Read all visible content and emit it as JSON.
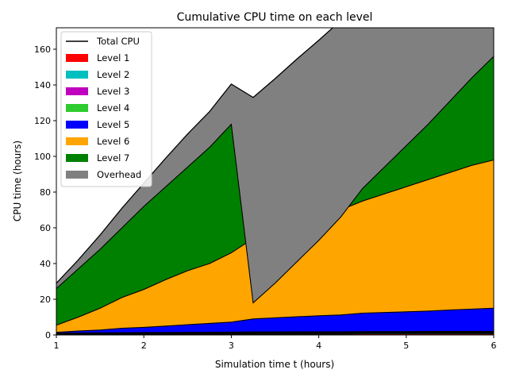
{
  "chart_data": {
    "type": "area",
    "title": "Cumulative CPU time on each level",
    "xlabel": "Simulation time t (hours)",
    "ylabel": "CPU time (hours)",
    "xlim": [
      1,
      6
    ],
    "ylim": [
      0,
      172
    ],
    "xticks": [
      "1",
      "2",
      "3",
      "4",
      "5",
      "6"
    ],
    "yticks": [
      "0",
      "20",
      "40",
      "60",
      "80",
      "100",
      "120",
      "140",
      "160"
    ],
    "legend_position": "top-left",
    "grid": false,
    "x": [
      1,
      1.25,
      1.5,
      1.75,
      2,
      2.25,
      2.5,
      2.75,
      3,
      3.25,
      3.5,
      3.75,
      4,
      4.25,
      4.5,
      4.75,
      5,
      5.25,
      5.5,
      5.75,
      6
    ],
    "cumulative_series": [
      {
        "name": "Level 1",
        "color": "#ff0000",
        "values": [
          0.3,
          0.3,
          0.4,
          0.4,
          0.4,
          0.4,
          0.5,
          0.5,
          0.5,
          0.5,
          0.5,
          0.5,
          0.5,
          0.5,
          0.6,
          0.6,
          0.6,
          0.6,
          0.6,
          0.6,
          0.6
        ]
      },
      {
        "name": "Level 2",
        "color": "#00bfbf",
        "values": [
          0.5,
          0.6,
          0.7,
          0.7,
          0.8,
          0.8,
          0.9,
          0.9,
          0.9,
          1.0,
          1.0,
          1.0,
          1.0,
          1.0,
          1.1,
          1.1,
          1.1,
          1.1,
          1.1,
          1.1,
          1.1
        ]
      },
      {
        "name": "Level 3",
        "color": "#bf00bf",
        "values": [
          0.8,
          0.9,
          1.0,
          1.0,
          1.1,
          1.2,
          1.2,
          1.3,
          1.3,
          1.4,
          1.4,
          1.4,
          1.5,
          1.5,
          1.5,
          1.5,
          1.5,
          1.6,
          1.6,
          1.6,
          1.6
        ]
      },
      {
        "name": "Level 4",
        "color": "#2ecc2e",
        "values": [
          1.0,
          1.1,
          1.2,
          1.3,
          1.4,
          1.4,
          1.5,
          1.5,
          1.6,
          1.7,
          1.7,
          1.8,
          1.8,
          1.8,
          1.9,
          1.9,
          1.9,
          2.0,
          2.0,
          2.0,
          2.0
        ]
      },
      {
        "name": "Level 5",
        "color": "#0000ff",
        "values": [
          1.5,
          2.2,
          2.8,
          3.8,
          4.3,
          5.0,
          5.8,
          6.5,
          7.2,
          9.0,
          9.6,
          10.2,
          10.8,
          11.2,
          12.2,
          12.6,
          13.0,
          13.4,
          14.0,
          14.5,
          15.0
        ]
      },
      {
        "name": "Level 6",
        "color": "#ffa500",
        "values": [
          5.5,
          10.0,
          15.0,
          21.0,
          25.5,
          31.0,
          36.0,
          40.0,
          46.0,
          54.0,
          58.0,
          62.0,
          66.0,
          70.0,
          75.0,
          79.0,
          83.0,
          87.0,
          91.0,
          95.0,
          98.0
        ]
      },
      {
        "name": "Level 7",
        "color": "#008000",
        "values": [
          26.0,
          37.0,
          48.0,
          60.0,
          72.0,
          83.0,
          94.0,
          105.0,
          118.0,
          18.0,
          29.0,
          41.0,
          53.0,
          66.0,
          82.0,
          94.0,
          106.0,
          118.0,
          131.0,
          144.0,
          156.0
        ]
      },
      {
        "name": "Overhead",
        "color": "#808080",
        "values": [
          29.0,
          42.0,
          56.0,
          71.0,
          85.0,
          99.0,
          112.5,
          125.0,
          140.5,
          133.0,
          143.5,
          154.5,
          165.0,
          176.0,
          187.0,
          198.0,
          209.0,
          220.0,
          231.0,
          242.0,
          253.0
        ]
      }
    ],
    "total_cpu": {
      "name": "Total CPU",
      "color": "#000000",
      "values": [
        29.0,
        42.0,
        56.0,
        71.0,
        85.0,
        99.0,
        112.5,
        125.0,
        140.5,
        133.0,
        143.5,
        154.5,
        165.0,
        176.0,
        187.0,
        198.0,
        209.0,
        220.0,
        231.0,
        242.0,
        253.0
      ]
    }
  }
}
